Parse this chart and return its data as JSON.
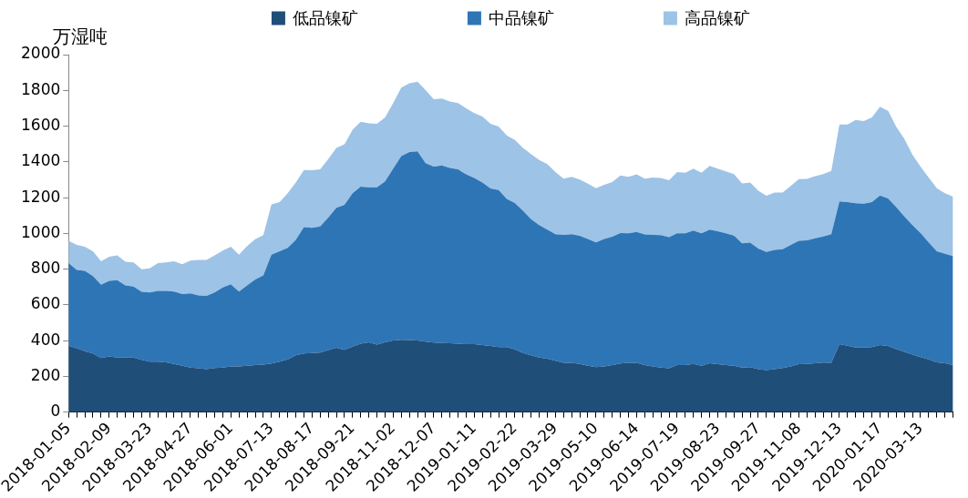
{
  "chart_data": {
    "type": "area",
    "stacked": true,
    "ylabel": "万湿吨",
    "legend": "top",
    "grid": false,
    "marker": "none",
    "ylim": [
      0,
      2000
    ],
    "yticks": [
      0,
      200,
      400,
      600,
      800,
      1000,
      1200,
      1400,
      1600,
      1800,
      2000
    ],
    "categories": [
      "2018-01-05",
      null,
      null,
      null,
      null,
      "2018-02-09",
      null,
      null,
      null,
      null,
      "2018-03-23",
      null,
      null,
      null,
      null,
      "2018-04-27",
      null,
      null,
      null,
      null,
      "2018-06-01",
      null,
      null,
      null,
      null,
      "2018-07-13",
      null,
      null,
      null,
      null,
      "2018-08-17",
      null,
      null,
      null,
      null,
      "2018-09-21",
      null,
      null,
      null,
      null,
      "2018-11-02",
      null,
      null,
      null,
      null,
      "2018-12-07",
      null,
      null,
      null,
      null,
      "2019-01-11",
      null,
      null,
      null,
      null,
      "2019-02-22",
      null,
      null,
      null,
      null,
      "2019-03-29",
      null,
      null,
      null,
      null,
      "2019-05-10",
      null,
      null,
      null,
      null,
      "2019-06-14",
      null,
      null,
      null,
      null,
      "2019-07-19",
      null,
      null,
      null,
      null,
      "2019-08-23",
      null,
      null,
      null,
      null,
      "2019-09-27",
      null,
      null,
      null,
      null,
      "2019-11-08",
      null,
      null,
      null,
      null,
      "2019-12-13",
      null,
      null,
      null,
      null,
      "2020-01-17",
      null,
      null,
      null,
      null,
      "2020-03-13",
      null,
      null,
      null,
      null
    ],
    "series": [
      {
        "name": "低品镍矿",
        "color": "#1f4e79",
        "values": [
          372,
          357,
          341,
          328,
          303,
          312,
          305,
          305,
          305,
          293,
          283,
          283,
          279,
          270,
          260,
          250,
          245,
          241,
          247,
          249,
          256,
          256,
          260,
          264,
          266,
          272,
          283,
          295,
          318,
          328,
          331,
          333,
          347,
          360,
          349,
          366,
          383,
          391,
          378,
          391,
          401,
          405,
          403,
          401,
          395,
          389,
          387,
          385,
          383,
          380,
          380,
          376,
          370,
          364,
          364,
          351,
          331,
          318,
          306,
          299,
          287,
          276,
          276,
          270,
          260,
          252,
          256,
          264,
          272,
          276,
          276,
          264,
          256,
          250,
          245,
          264,
          264,
          270,
          260,
          274,
          268,
          264,
          260,
          249,
          252,
          241,
          235,
          241,
          247,
          256,
          268,
          270,
          274,
          277,
          276,
          380,
          372,
          362,
          362,
          364,
          376,
          370,
          353,
          337,
          322,
          308,
          295,
          279,
          274,
          264
        ]
      },
      {
        "name": "中品镍矿",
        "color": "#2e75b6",
        "values": [
          462,
          439,
          449,
          433,
          410,
          422,
          433,
          404,
          398,
          380,
          386,
          395,
          399,
          404,
          401,
          415,
          408,
          410,
          422,
          449,
          459,
          418,
          449,
          478,
          499,
          609,
          617,
          624,
          646,
          707,
          700,
          706,
          742,
          783,
          811,
          858,
          879,
          867,
          880,
          900,
          961,
          1027,
          1052,
          1058,
          998,
          985,
          993,
          981,
          975,
          950,
          930,
          909,
          881,
          879,
          829,
          819,
          796,
          761,
          740,
          722,
          709,
          716,
          720,
          717,
          709,
          698,
          713,
          717,
          730,
          724,
          732,
          730,
          736,
          740,
          734,
          736,
          736,
          746,
          740,
          747,
          744,
          736,
          728,
          695,
          696,
          674,
          661,
          667,
          664,
          679,
          690,
          691,
          699,
          706,
          720,
          799,
          803,
          806,
          804,
          811,
          836,
          825,
          794,
          758,
          724,
          694,
          655,
          621,
          612,
          609
        ]
      },
      {
        "name": "高品镍矿",
        "color": "#9dc3e6",
        "values": [
          124,
          139,
          135,
          139,
          131,
          135,
          139,
          133,
          135,
          127,
          135,
          156,
          160,
          170,
          166,
          183,
          199,
          201,
          208,
          206,
          210,
          207,
          220,
          225,
          225,
          281,
          275,
          305,
          321,
          320,
          322,
          319,
          327,
          335,
          339,
          356,
          362,
          358,
          355,
          357,
          367,
          383,
          385,
          389,
          409,
          376,
          374,
          372,
          371,
          370,
          363,
          369,
          362,
          355,
          355,
          353,
          351,
          364,
          364,
          366,
          347,
          314,
          320,
          314,
          309,
          303,
          303,
          306,
          322,
          316,
          322,
          312,
          320,
          320,
          318,
          343,
          339,
          346,
          339,
          357,
          350,
          347,
          343,
          336,
          337,
          324,
          314,
          321,
          318,
          331,
          345,
          344,
          347,
          348,
          353,
          430,
          434,
          467,
          462,
          473,
          497,
          491,
          449,
          434,
          394,
          372,
          362,
          353,
          338,
          332
        ]
      }
    ]
  }
}
